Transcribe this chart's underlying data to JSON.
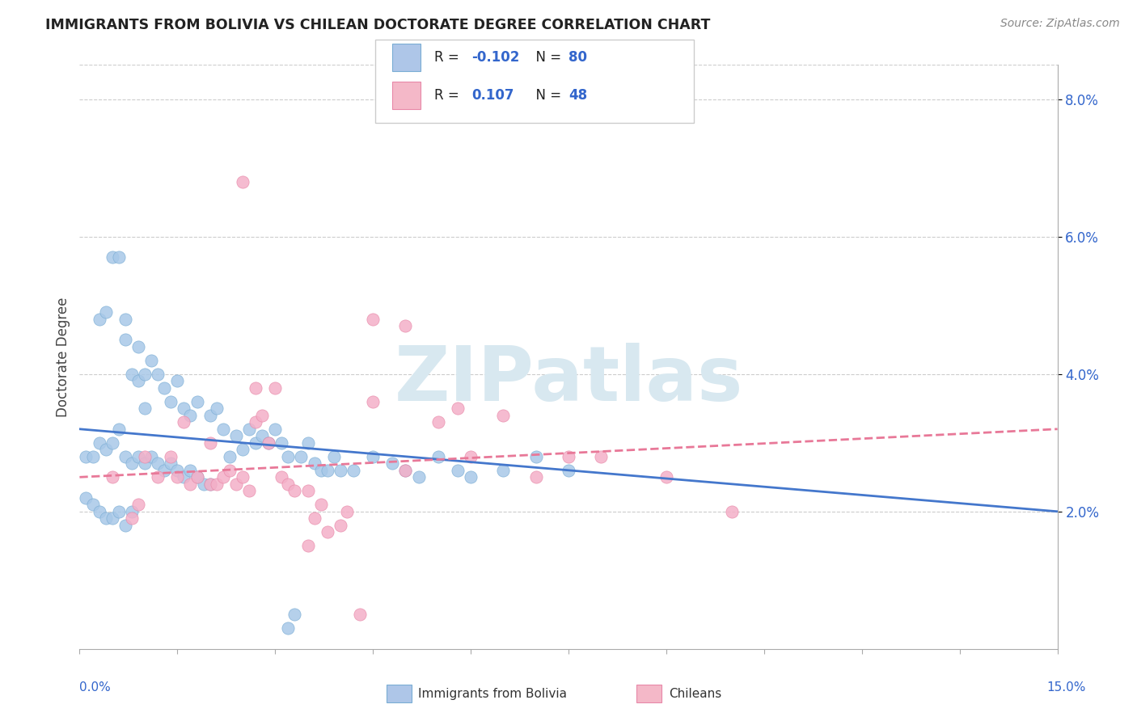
{
  "title": "IMMIGRANTS FROM BOLIVIA VS CHILEAN DOCTORATE DEGREE CORRELATION CHART",
  "source_text": "Source: ZipAtlas.com",
  "ylabel": "Doctorate Degree",
  "xmin": 0.0,
  "xmax": 15.0,
  "ymin": 0.0,
  "ymax": 8.5,
  "ytick_values": [
    2.0,
    4.0,
    6.0,
    8.0
  ],
  "bolivia_color": "#a8c8e8",
  "bolivia_edge": "#7aadd4",
  "chile_color": "#f4b0c8",
  "chile_edge": "#e888a8",
  "bolivia_line_color": "#4477cc",
  "chile_line_color": "#e87898",
  "watermark_color": "#d8e8f0",
  "legend_box_color": "#aec6e8",
  "legend_pink_color": "#f4b8c8",
  "r_value_color": "#3366cc",
  "n_value_color": "#3366cc",
  "tick_color": "#3366cc",
  "grid_color": "#cccccc",
  "bolivia_R": -0.102,
  "bolivia_N": 80,
  "chile_R": 0.107,
  "chile_N": 48,
  "bolivia_scatter": [
    [
      0.3,
      4.8
    ],
    [
      0.4,
      4.9
    ],
    [
      0.5,
      5.7
    ],
    [
      0.6,
      5.7
    ],
    [
      0.7,
      4.5
    ],
    [
      0.7,
      4.8
    ],
    [
      0.8,
      4.0
    ],
    [
      0.9,
      3.9
    ],
    [
      0.9,
      4.4
    ],
    [
      1.0,
      4.0
    ],
    [
      1.0,
      3.5
    ],
    [
      1.1,
      4.2
    ],
    [
      1.2,
      4.0
    ],
    [
      1.3,
      3.8
    ],
    [
      1.4,
      3.6
    ],
    [
      1.5,
      3.9
    ],
    [
      1.6,
      3.5
    ],
    [
      1.7,
      3.4
    ],
    [
      1.8,
      3.6
    ],
    [
      2.0,
      3.4
    ],
    [
      2.1,
      3.5
    ],
    [
      2.2,
      3.2
    ],
    [
      2.3,
      2.8
    ],
    [
      2.4,
      3.1
    ],
    [
      2.5,
      2.9
    ],
    [
      2.6,
      3.2
    ],
    [
      2.7,
      3.0
    ],
    [
      2.8,
      3.1
    ],
    [
      2.9,
      3.0
    ],
    [
      3.0,
      3.2
    ],
    [
      3.1,
      3.0
    ],
    [
      3.2,
      2.8
    ],
    [
      3.4,
      2.8
    ],
    [
      3.5,
      3.0
    ],
    [
      3.6,
      2.7
    ],
    [
      3.7,
      2.6
    ],
    [
      3.8,
      2.6
    ],
    [
      3.9,
      2.8
    ],
    [
      4.0,
      2.6
    ],
    [
      4.2,
      2.6
    ],
    [
      4.5,
      2.8
    ],
    [
      4.8,
      2.7
    ],
    [
      5.0,
      2.6
    ],
    [
      5.2,
      2.5
    ],
    [
      5.5,
      2.8
    ],
    [
      5.8,
      2.6
    ],
    [
      6.0,
      2.5
    ],
    [
      6.5,
      2.6
    ],
    [
      7.0,
      2.8
    ],
    [
      7.5,
      2.6
    ],
    [
      0.1,
      2.8
    ],
    [
      0.2,
      2.8
    ],
    [
      0.3,
      3.0
    ],
    [
      0.4,
      2.9
    ],
    [
      0.5,
      3.0
    ],
    [
      0.6,
      3.2
    ],
    [
      0.7,
      2.8
    ],
    [
      0.8,
      2.7
    ],
    [
      0.9,
      2.8
    ],
    [
      1.0,
      2.7
    ],
    [
      1.1,
      2.8
    ],
    [
      1.2,
      2.7
    ],
    [
      1.3,
      2.6
    ],
    [
      1.4,
      2.7
    ],
    [
      1.5,
      2.6
    ],
    [
      1.6,
      2.5
    ],
    [
      1.7,
      2.6
    ],
    [
      1.8,
      2.5
    ],
    [
      1.9,
      2.4
    ],
    [
      2.0,
      2.4
    ],
    [
      0.1,
      2.2
    ],
    [
      0.2,
      2.1
    ],
    [
      0.3,
      2.0
    ],
    [
      0.4,
      1.9
    ],
    [
      0.5,
      1.9
    ],
    [
      0.6,
      2.0
    ],
    [
      0.7,
      1.8
    ],
    [
      0.8,
      2.0
    ],
    [
      3.2,
      0.3
    ],
    [
      3.3,
      0.5
    ]
  ],
  "chile_scatter": [
    [
      0.5,
      2.5
    ],
    [
      0.8,
      1.9
    ],
    [
      0.9,
      2.1
    ],
    [
      1.0,
      2.8
    ],
    [
      1.2,
      2.5
    ],
    [
      1.4,
      2.8
    ],
    [
      1.5,
      2.5
    ],
    [
      1.6,
      3.3
    ],
    [
      1.7,
      2.4
    ],
    [
      1.8,
      2.5
    ],
    [
      2.0,
      2.4
    ],
    [
      2.0,
      3.0
    ],
    [
      2.1,
      2.4
    ],
    [
      2.2,
      2.5
    ],
    [
      2.3,
      2.6
    ],
    [
      2.4,
      2.4
    ],
    [
      2.5,
      2.5
    ],
    [
      2.6,
      2.3
    ],
    [
      2.7,
      3.3
    ],
    [
      2.7,
      3.8
    ],
    [
      2.8,
      3.4
    ],
    [
      2.9,
      3.0
    ],
    [
      3.0,
      3.8
    ],
    [
      3.1,
      2.5
    ],
    [
      3.2,
      2.4
    ],
    [
      3.3,
      2.3
    ],
    [
      3.5,
      2.3
    ],
    [
      3.6,
      1.9
    ],
    [
      3.7,
      2.1
    ],
    [
      3.8,
      1.7
    ],
    [
      4.0,
      1.8
    ],
    [
      4.1,
      2.0
    ],
    [
      4.5,
      3.6
    ],
    [
      5.0,
      4.7
    ],
    [
      5.0,
      2.6
    ],
    [
      5.5,
      3.3
    ],
    [
      5.8,
      3.5
    ],
    [
      6.0,
      2.8
    ],
    [
      6.5,
      3.4
    ],
    [
      7.0,
      2.5
    ],
    [
      7.5,
      2.8
    ],
    [
      8.0,
      2.8
    ],
    [
      9.0,
      2.5
    ],
    [
      10.0,
      2.0
    ],
    [
      2.5,
      6.8
    ],
    [
      4.5,
      4.8
    ],
    [
      3.5,
      1.5
    ],
    [
      4.3,
      0.5
    ]
  ]
}
